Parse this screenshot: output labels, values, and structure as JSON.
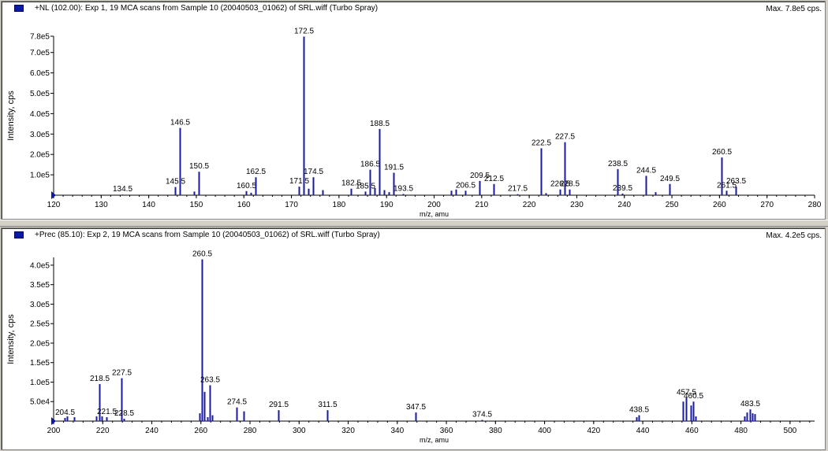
{
  "colors": {
    "bar": "#1a1aa0",
    "axis": "#000000",
    "marker": "#0a1aa8"
  },
  "chart_data": [
    {
      "type": "bar",
      "title": "+NL (102.00): Exp 1, 19 MCA scans from Sample 10 (20040503_01062) of SRL.wiff (Turbo Spray)",
      "max_label": "Max. 7.8e5 cps.",
      "xlabel": "m/z, amu",
      "ylabel": "Intensity, cps",
      "xlim": [
        120,
        280
      ],
      "ylim": [
        0,
        780000
      ],
      "x_ticks": [
        120,
        130,
        140,
        150,
        160,
        170,
        180,
        190,
        200,
        210,
        220,
        230,
        240,
        250,
        260,
        270,
        280
      ],
      "y_ticks": [
        {
          "value": 100000,
          "label": "1.0e5"
        },
        {
          "value": 200000,
          "label": "2.0e5"
        },
        {
          "value": 300000,
          "label": "3.0e5"
        },
        {
          "value": 400000,
          "label": "4.0e5"
        },
        {
          "value": 500000,
          "label": "5.0e5"
        },
        {
          "value": 600000,
          "label": "6.0e5"
        },
        {
          "value": 700000,
          "label": "7.0e5"
        },
        {
          "value": 780000,
          "label": "7.8e5"
        }
      ],
      "peaks": [
        {
          "x": 134.5,
          "y": 3000,
          "label": "134.5"
        },
        {
          "x": 145.5,
          "y": 40000,
          "label": "145.5"
        },
        {
          "x": 146.5,
          "y": 330000,
          "label": "146.5"
        },
        {
          "x": 149.5,
          "y": 18000,
          "label": ""
        },
        {
          "x": 150.5,
          "y": 115000,
          "label": "150.5"
        },
        {
          "x": 160.5,
          "y": 20000,
          "label": "160.5"
        },
        {
          "x": 161.5,
          "y": 12000,
          "label": ""
        },
        {
          "x": 162.5,
          "y": 88000,
          "label": "162.5"
        },
        {
          "x": 171.5,
          "y": 42000,
          "label": "171.5"
        },
        {
          "x": 172.5,
          "y": 778000,
          "label": "172.5"
        },
        {
          "x": 173.5,
          "y": 32000,
          "label": ""
        },
        {
          "x": 174.5,
          "y": 88000,
          "label": "174.5"
        },
        {
          "x": 176.5,
          "y": 25000,
          "label": ""
        },
        {
          "x": 182.5,
          "y": 32000,
          "label": "182.5"
        },
        {
          "x": 185.5,
          "y": 18000,
          "label": "185.5"
        },
        {
          "x": 186.5,
          "y": 125000,
          "label": "186.5"
        },
        {
          "x": 187.5,
          "y": 35000,
          "label": ""
        },
        {
          "x": 188.5,
          "y": 325000,
          "label": "188.5"
        },
        {
          "x": 189.5,
          "y": 25000,
          "label": ""
        },
        {
          "x": 190.5,
          "y": 15000,
          "label": ""
        },
        {
          "x": 191.5,
          "y": 110000,
          "label": "191.5"
        },
        {
          "x": 193.5,
          "y": 6000,
          "label": "193.5"
        },
        {
          "x": 203.5,
          "y": 22000,
          "label": ""
        },
        {
          "x": 204.5,
          "y": 28000,
          "label": ""
        },
        {
          "x": 206.5,
          "y": 22000,
          "label": "206.5"
        },
        {
          "x": 209.5,
          "y": 70000,
          "label": "209.5"
        },
        {
          "x": 212.5,
          "y": 55000,
          "label": "212.5"
        },
        {
          "x": 217.5,
          "y": 5000,
          "label": "217.5"
        },
        {
          "x": 222.5,
          "y": 230000,
          "label": "222.5"
        },
        {
          "x": 223.5,
          "y": 10000,
          "label": ""
        },
        {
          "x": 226.5,
          "y": 28000,
          "label": "226.5"
        },
        {
          "x": 227.5,
          "y": 260000,
          "label": "227.5"
        },
        {
          "x": 228.5,
          "y": 28000,
          "label": "228.5"
        },
        {
          "x": 238.5,
          "y": 128000,
          "label": "238.5"
        },
        {
          "x": 239.5,
          "y": 8000,
          "label": "239.5"
        },
        {
          "x": 244.5,
          "y": 95000,
          "label": "244.5"
        },
        {
          "x": 246.5,
          "y": 15000,
          "label": ""
        },
        {
          "x": 249.5,
          "y": 55000,
          "label": "249.5"
        },
        {
          "x": 260.5,
          "y": 185000,
          "label": "260.5"
        },
        {
          "x": 261.5,
          "y": 22000,
          "label": "261.5"
        },
        {
          "x": 263.5,
          "y": 42000,
          "label": "263.5"
        }
      ]
    },
    {
      "type": "bar",
      "title": "+Prec (85.10): Exp 2, 19 MCA scans from Sample 10 (20040503_01062) of SRL.wiff (Turbo Spray)",
      "max_label": "Max. 4.2e5 cps.",
      "xlabel": "m/z, amu",
      "ylabel": "Intensity, cps",
      "xlim": [
        200,
        510
      ],
      "ylim": [
        0,
        420000
      ],
      "x_ticks": [
        200,
        220,
        240,
        260,
        280,
        300,
        320,
        340,
        360,
        380,
        400,
        420,
        440,
        460,
        480,
        500
      ],
      "y_ticks": [
        {
          "value": 50000,
          "label": "5.0e4"
        },
        {
          "value": 100000,
          "label": "1.0e5"
        },
        {
          "value": 150000,
          "label": "1.5e5"
        },
        {
          "value": 200000,
          "label": "2.0e5"
        },
        {
          "value": 250000,
          "label": "2.5e5"
        },
        {
          "value": 300000,
          "label": "3.0e5"
        },
        {
          "value": 350000,
          "label": "3.5e5"
        },
        {
          "value": 400000,
          "label": "4.0e5"
        }
      ],
      "peaks": [
        {
          "x": 204.5,
          "y": 8000,
          "label": "204.5"
        },
        {
          "x": 205.5,
          "y": 12000,
          "label": ""
        },
        {
          "x": 208.5,
          "y": 10000,
          "label": ""
        },
        {
          "x": 217.5,
          "y": 12000,
          "label": ""
        },
        {
          "x": 218.5,
          "y": 95000,
          "label": "218.5"
        },
        {
          "x": 219.5,
          "y": 12000,
          "label": ""
        },
        {
          "x": 221.5,
          "y": 10000,
          "label": "221.5"
        },
        {
          "x": 227.5,
          "y": 110000,
          "label": "227.5"
        },
        {
          "x": 228.5,
          "y": 6000,
          "label": "228.5"
        },
        {
          "x": 259.5,
          "y": 20000,
          "label": ""
        },
        {
          "x": 260.5,
          "y": 415000,
          "label": "260.5"
        },
        {
          "x": 261.5,
          "y": 75000,
          "label": ""
        },
        {
          "x": 262.5,
          "y": 10000,
          "label": ""
        },
        {
          "x": 263.5,
          "y": 92000,
          "label": "263.5"
        },
        {
          "x": 264.5,
          "y": 15000,
          "label": ""
        },
        {
          "x": 274.5,
          "y": 35000,
          "label": "274.5"
        },
        {
          "x": 277.5,
          "y": 25000,
          "label": ""
        },
        {
          "x": 291.5,
          "y": 28000,
          "label": "291.5"
        },
        {
          "x": 311.5,
          "y": 28000,
          "label": "311.5"
        },
        {
          "x": 347.5,
          "y": 22000,
          "label": "347.5"
        },
        {
          "x": 374.5,
          "y": 3000,
          "label": "374.5"
        },
        {
          "x": 437.5,
          "y": 10000,
          "label": ""
        },
        {
          "x": 438.5,
          "y": 15000,
          "label": "438.5"
        },
        {
          "x": 456.5,
          "y": 50000,
          "label": ""
        },
        {
          "x": 457.5,
          "y": 60000,
          "label": "457.5"
        },
        {
          "x": 459.5,
          "y": 40000,
          "label": ""
        },
        {
          "x": 460.5,
          "y": 50000,
          "label": "460.5"
        },
        {
          "x": 461.5,
          "y": 12000,
          "label": ""
        },
        {
          "x": 481.5,
          "y": 12000,
          "label": ""
        },
        {
          "x": 482.5,
          "y": 22000,
          "label": ""
        },
        {
          "x": 483.5,
          "y": 30000,
          "label": "483.5"
        },
        {
          "x": 484.5,
          "y": 20000,
          "label": ""
        },
        {
          "x": 485.5,
          "y": 18000,
          "label": ""
        }
      ]
    }
  ]
}
